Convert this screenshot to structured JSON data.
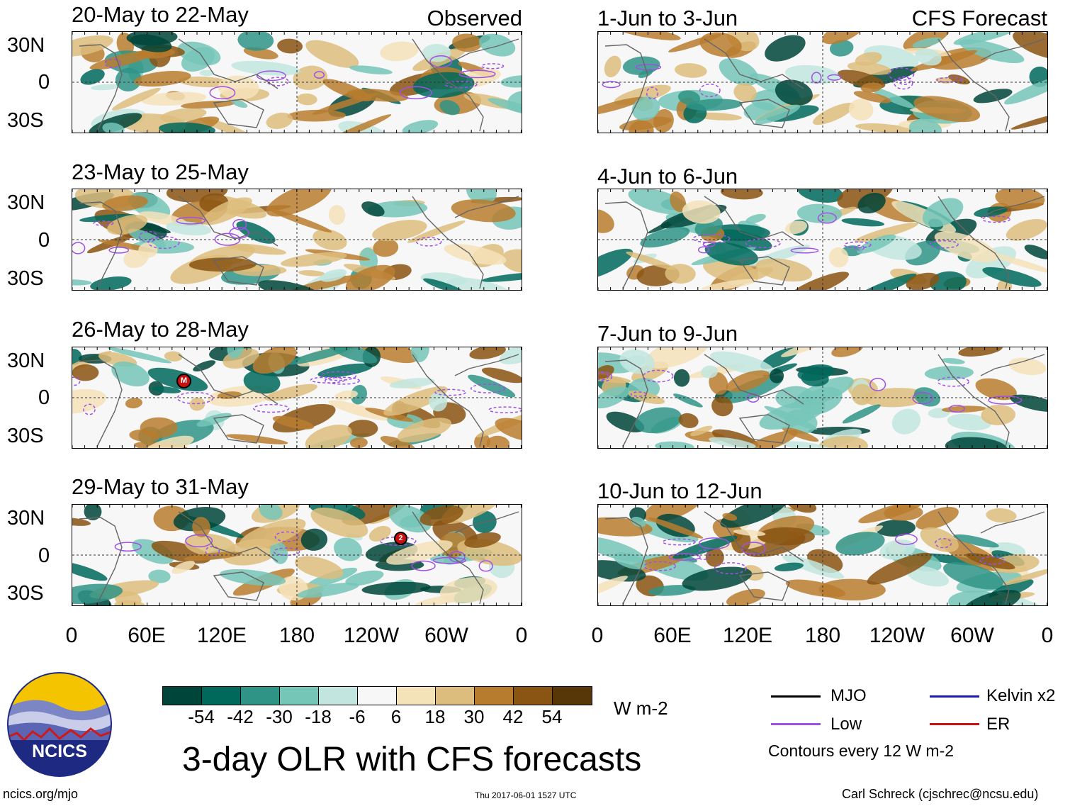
{
  "header": {
    "observed_label": "Observed",
    "forecast_label": "CFS Forecast"
  },
  "panels": {
    "left": [
      {
        "title": "20-May to 22-May"
      },
      {
        "title": "23-May to 25-May"
      },
      {
        "title": "26-May to 28-May"
      },
      {
        "title": "29-May to 31-May"
      }
    ],
    "right": [
      {
        "title": "1-Jun to 3-Jun"
      },
      {
        "title": "4-Jun to 6-Jun"
      },
      {
        "title": "7-Jun to 9-Jun"
      },
      {
        "title": "10-Jun to 12-Jun"
      }
    ]
  },
  "axes": {
    "lat_labels": [
      "30N",
      "0",
      "30S"
    ],
    "lon_labels": [
      "0",
      "60E",
      "120E",
      "180",
      "120W",
      "60W",
      "0"
    ]
  },
  "markers": {
    "mjo_marker": "M",
    "storm_marker": "2"
  },
  "colorbar": {
    "colors": [
      "#00453a",
      "#00695c",
      "#2f9486",
      "#76c6b8",
      "#c2e6df",
      "#f7f7f7",
      "#f4e2b9",
      "#ddbd7d",
      "#b87c2f",
      "#8a5412",
      "#573608"
    ],
    "tick_labels": [
      "-54",
      "-42",
      "-30",
      "-18",
      "-6",
      "6",
      "18",
      "30",
      "42",
      "54"
    ],
    "units": "W m-2"
  },
  "legend": {
    "items": [
      {
        "label": "MJO",
        "color": "#000000"
      },
      {
        "label": "Kelvin x2",
        "color": "#1a1ab4"
      },
      {
        "label": "Low",
        "color": "#a050e6"
      },
      {
        "label": "ER",
        "color": "#d01010"
      }
    ],
    "contour_note": "Contours every 12 W m-2"
  },
  "footer": {
    "main_title": "3-day OLR with CFS forecasts",
    "url": "ncics.org/mjo",
    "timestamp": "Thu 2017-06-01 1527 UTC",
    "credit": "Carl Schreck (cjschrec@ncsu.edu)",
    "logo_text": "NCICS"
  }
}
